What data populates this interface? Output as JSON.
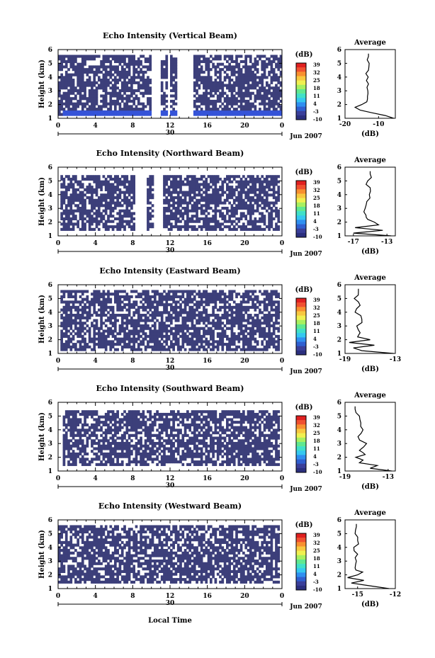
{
  "figure": {
    "date_label": "Jun 2007",
    "xlabel": "Local Time",
    "day_label": "30",
    "colorbar_unit": "(dB)",
    "average_title": "Average",
    "average_xlabel": "(dB)"
  },
  "colorbar": {
    "ticks": [
      "39",
      "32",
      "25",
      "18",
      "11",
      "4",
      "-3",
      "-10"
    ],
    "colors": [
      "#2b2f7e",
      "#3a3f9a",
      "#2f5fd0",
      "#2f8ff0",
      "#35c8f0",
      "#40e0c8",
      "#60e890",
      "#a8f060",
      "#f0f050",
      "#f8c840",
      "#f89030",
      "#f05030",
      "#e02020"
    ]
  },
  "chart_data": [
    {
      "type": "heatmap",
      "title": "Echo Intensity (Vertical Beam)",
      "ylabel": "Height (km)",
      "xlim": [
        0,
        24
      ],
      "ylim": [
        1,
        6
      ],
      "x_ticks": [
        "0",
        "4",
        "8",
        "12",
        "16",
        "20",
        "0"
      ],
      "y_ticks": [
        "1",
        "2",
        "3",
        "4",
        "5",
        "6"
      ],
      "fill_color": "#3c3f7a",
      "data_extent": {
        "x": [
          0,
          24
        ],
        "y": [
          1.2,
          5.6
        ]
      },
      "low_layer": {
        "color": "#3553d8",
        "y": [
          1.2,
          1.6
        ],
        "x": [
          0.4,
          24
        ]
      },
      "gaps": [
        [
          10.0,
          11.0
        ],
        [
          11.7,
          12.1
        ],
        [
          12.7,
          14.6
        ]
      ],
      "average": {
        "xlim": [
          -20,
          -5
        ],
        "x_ticks": [
          "-20",
          "-10"
        ],
        "heights": [
          1.0,
          1.2,
          1.4,
          1.6,
          1.8,
          2.0,
          2.2,
          2.6,
          3.0,
          3.5,
          4.0,
          4.5,
          5.0,
          5.5
        ],
        "values": [
          -5.5,
          -8.0,
          -12.0,
          -15.5,
          -17.0,
          -15.0,
          -13.5,
          -13.3,
          -13.2,
          -13.0,
          -13.1,
          -13.0,
          -12.8,
          -13.0
        ]
      }
    },
    {
      "type": "heatmap",
      "title": "Echo Intensity (Northward Beam)",
      "ylabel": "Height (km)",
      "xlim": [
        0,
        24
      ],
      "ylim": [
        1,
        6
      ],
      "x_ticks": [
        "0",
        "4",
        "8",
        "12",
        "16",
        "20",
        "0"
      ],
      "y_ticks": [
        "1",
        "2",
        "3",
        "4",
        "5",
        "6"
      ],
      "fill_color": "#3c3f7a",
      "data_extent": {
        "x": [
          0.2,
          23.8
        ],
        "y": [
          1.4,
          5.5
        ]
      },
      "gaps": [
        [
          8.3,
          9.5
        ],
        [
          10.2,
          11.2
        ]
      ],
      "average": {
        "xlim": [
          -18,
          -12
        ],
        "x_ticks": [
          "-17",
          "-13"
        ],
        "heights": [
          1.0,
          1.2,
          1.4,
          1.6,
          1.8,
          2.0,
          2.2,
          2.5,
          3.0,
          3.5,
          4.0,
          4.5,
          5.0,
          5.5
        ],
        "values": [
          -12.5,
          -17.0,
          -13.5,
          -16.8,
          -14.0,
          -14.5,
          -15.3,
          -15.5,
          -15.6,
          -15.4,
          -15.1,
          -15.0,
          -15.3,
          -15.0
        ]
      }
    },
    {
      "type": "heatmap",
      "title": "Echo Intensity (Eastward Beam)",
      "ylabel": "Height (km)",
      "xlim": [
        0,
        24
      ],
      "ylim": [
        1,
        6
      ],
      "x_ticks": [
        "0",
        "4",
        "8",
        "12",
        "16",
        "20",
        "0"
      ],
      "y_ticks": [
        "1",
        "2",
        "3",
        "4",
        "5",
        "6"
      ],
      "fill_color": "#3c3f7a",
      "data_extent": {
        "x": [
          0.2,
          23.8
        ],
        "y": [
          1.2,
          5.6
        ]
      },
      "gaps": [],
      "average": {
        "xlim": [
          -19,
          -13
        ],
        "x_ticks": [
          "-19",
          "-13"
        ],
        "heights": [
          1.0,
          1.2,
          1.4,
          1.6,
          1.8,
          2.0,
          2.2,
          2.5,
          3.0,
          3.5,
          4.0,
          4.5,
          5.0,
          5.5
        ],
        "values": [
          -13.2,
          -17.0,
          -18.0,
          -15.5,
          -18.5,
          -16.0,
          -17.5,
          -17.2,
          -17.6,
          -17.0,
          -17.8,
          -17.2,
          -17.9,
          -17.4
        ]
      }
    },
    {
      "type": "heatmap",
      "title": "Echo Intensity (Southward Beam)",
      "ylabel": "Height (km)",
      "xlim": [
        0,
        24
      ],
      "ylim": [
        1,
        6
      ],
      "x_ticks": [
        "0",
        "4",
        "8",
        "12",
        "16",
        "20",
        "0"
      ],
      "y_ticks": [
        "1",
        "2",
        "3",
        "4",
        "5",
        "6"
      ],
      "fill_color": "#3c3f7a",
      "data_extent": {
        "x": [
          0.6,
          23.8
        ],
        "y": [
          1.4,
          5.5
        ]
      },
      "gaps": [],
      "average": {
        "xlim": [
          -19,
          -12
        ],
        "x_ticks": [
          "-19",
          "-13"
        ],
        "heights": [
          1.0,
          1.2,
          1.4,
          1.6,
          1.8,
          2.0,
          2.2,
          2.5,
          3.0,
          3.5,
          4.0,
          4.5,
          5.0,
          5.5
        ],
        "values": [
          -12.5,
          -15.5,
          -14.5,
          -17.0,
          -16.5,
          -17.5,
          -16.2,
          -17.0,
          -16.0,
          -17.2,
          -16.5,
          -16.8,
          -17.0,
          -17.6
        ]
      }
    },
    {
      "type": "heatmap",
      "title": "Echo Intensity (Westward Beam)",
      "ylabel": "Height (km)",
      "xlim": [
        0,
        24
      ],
      "ylim": [
        1,
        6
      ],
      "x_ticks": [
        "0",
        "4",
        "8",
        "12",
        "16",
        "20",
        "0"
      ],
      "y_ticks": [
        "1",
        "2",
        "3",
        "4",
        "5",
        "6"
      ],
      "fill_color": "#3c3f7a",
      "data_extent": {
        "x": [
          0.0,
          23.8
        ],
        "y": [
          1.4,
          5.6
        ]
      },
      "gaps": [],
      "average": {
        "xlim": [
          -16,
          -12
        ],
        "x_ticks": [
          "-15",
          "-12"
        ],
        "heights": [
          1.0,
          1.2,
          1.4,
          1.6,
          1.8,
          2.0,
          2.2,
          2.5,
          3.0,
          3.5,
          4.0,
          4.5,
          5.0,
          5.5
        ],
        "values": [
          -12.5,
          -14.0,
          -15.5,
          -14.5,
          -15.8,
          -15.0,
          -14.6,
          -15.2,
          -15.1,
          -15.0,
          -15.3,
          -15.0,
          -15.2,
          -15.1
        ]
      }
    }
  ]
}
